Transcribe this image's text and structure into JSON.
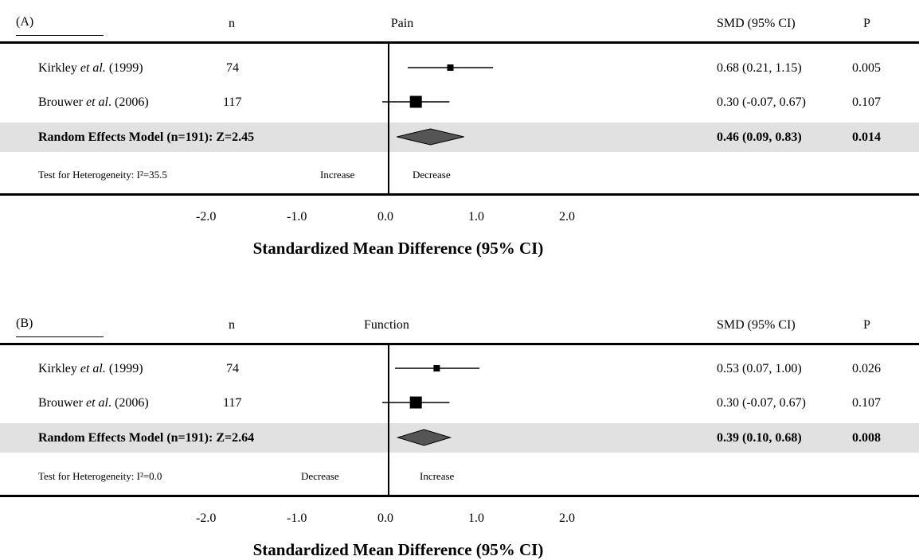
{
  "panels": [
    {
      "tag": "(A)",
      "n_header": "n",
      "outcome": "Pain",
      "smd_header": "SMD (95% CI)",
      "p_header": "P",
      "studies": [
        {
          "author": "Kirkley ",
          "etal": "et al.",
          "year": " (1999)",
          "n": "74",
          "smd_text": "0.68 (0.21, 1.15)",
          "p": "0.005"
        },
        {
          "author": "Brouwer ",
          "etal": "et al",
          "year": ". (2006)",
          "n": "117",
          "smd_text": "0.30 (-0.07, 0.67)",
          "p": "0.107"
        }
      ],
      "pooled": {
        "label": "Random Effects Model (n=191): Z=2.45",
        "smd_text": "0.46 (0.09, 0.83)",
        "p": "0.014"
      },
      "heterogeneity": "Test for Heterogeneity: I²=35.5",
      "left_direction": "Increase",
      "right_direction": "Decrease",
      "ticks": [
        "-2.0",
        "-1.0",
        "0.0",
        "1.0",
        "2.0"
      ],
      "xlabel": "Standardized Mean Difference (95% CI)"
    },
    {
      "tag": "(B)",
      "n_header": "n",
      "outcome": "Function",
      "smd_header": "SMD (95% CI)",
      "p_header": "P",
      "studies": [
        {
          "author": "Kirkley ",
          "etal": "et al.",
          "year": " (1999)",
          "n": "74",
          "smd_text": "0.53 (0.07, 1.00)",
          "p": "0.026"
        },
        {
          "author": "Brouwer ",
          "etal": "et al",
          "year": ". (2006)",
          "n": "117",
          "smd_text": "0.30 (-0.07, 0.67)",
          "p": "0.107"
        }
      ],
      "pooled": {
        "label": "Random Effects Model (n=191): Z=2.64",
        "smd_text": "0.39 (0.10, 0.68)",
        "p": "0.008"
      },
      "heterogeneity": "Test for Heterogeneity: I²=0.0",
      "left_direction": "Decrease",
      "right_direction": "Increase",
      "ticks": [
        "-2.0",
        "-1.0",
        "0.0",
        "1.0",
        "2.0"
      ],
      "xlabel": "Standardized Mean Difference (95% CI)"
    }
  ],
  "chart_data": [
    {
      "type": "forest",
      "title": "Pain",
      "xlabel": "Standardized Mean Difference (95% CI)",
      "xlim": [
        -2.0,
        2.0
      ],
      "xticks": [
        -2.0,
        -1.0,
        0.0,
        1.0,
        2.0
      ],
      "studies": [
        {
          "name": "Kirkley et al. (1999)",
          "n": 74,
          "smd": 0.68,
          "lower": 0.21,
          "upper": 1.15,
          "p": 0.005
        },
        {
          "name": "Brouwer et al. (2006)",
          "n": 117,
          "smd": 0.3,
          "lower": -0.07,
          "upper": 0.67,
          "p": 0.107
        }
      ],
      "pooled": {
        "name": "Random Effects Model",
        "n": 191,
        "z": 2.45,
        "smd": 0.46,
        "lower": 0.09,
        "upper": 0.83,
        "p": 0.014
      },
      "heterogeneity_i2": 35.5,
      "marker_color": "#000000",
      "diamond_color": "#555555"
    },
    {
      "type": "forest",
      "title": "Function",
      "xlabel": "Standardized Mean Difference (95% CI)",
      "xlim": [
        -2.0,
        2.0
      ],
      "xticks": [
        -2.0,
        -1.0,
        0.0,
        1.0,
        2.0
      ],
      "studies": [
        {
          "name": "Kirkley et al. (1999)",
          "n": 74,
          "smd": 0.53,
          "lower": 0.07,
          "upper": 1.0,
          "p": 0.026
        },
        {
          "name": "Brouwer et al. (2006)",
          "n": 117,
          "smd": 0.3,
          "lower": -0.07,
          "upper": 0.67,
          "p": 0.107
        }
      ],
      "pooled": {
        "name": "Random Effects Model",
        "n": 191,
        "z": 2.64,
        "smd": 0.39,
        "lower": 0.1,
        "upper": 0.68,
        "p": 0.008
      },
      "heterogeneity_i2": 0.0,
      "marker_color": "#000000",
      "diamond_color": "#555555"
    }
  ]
}
